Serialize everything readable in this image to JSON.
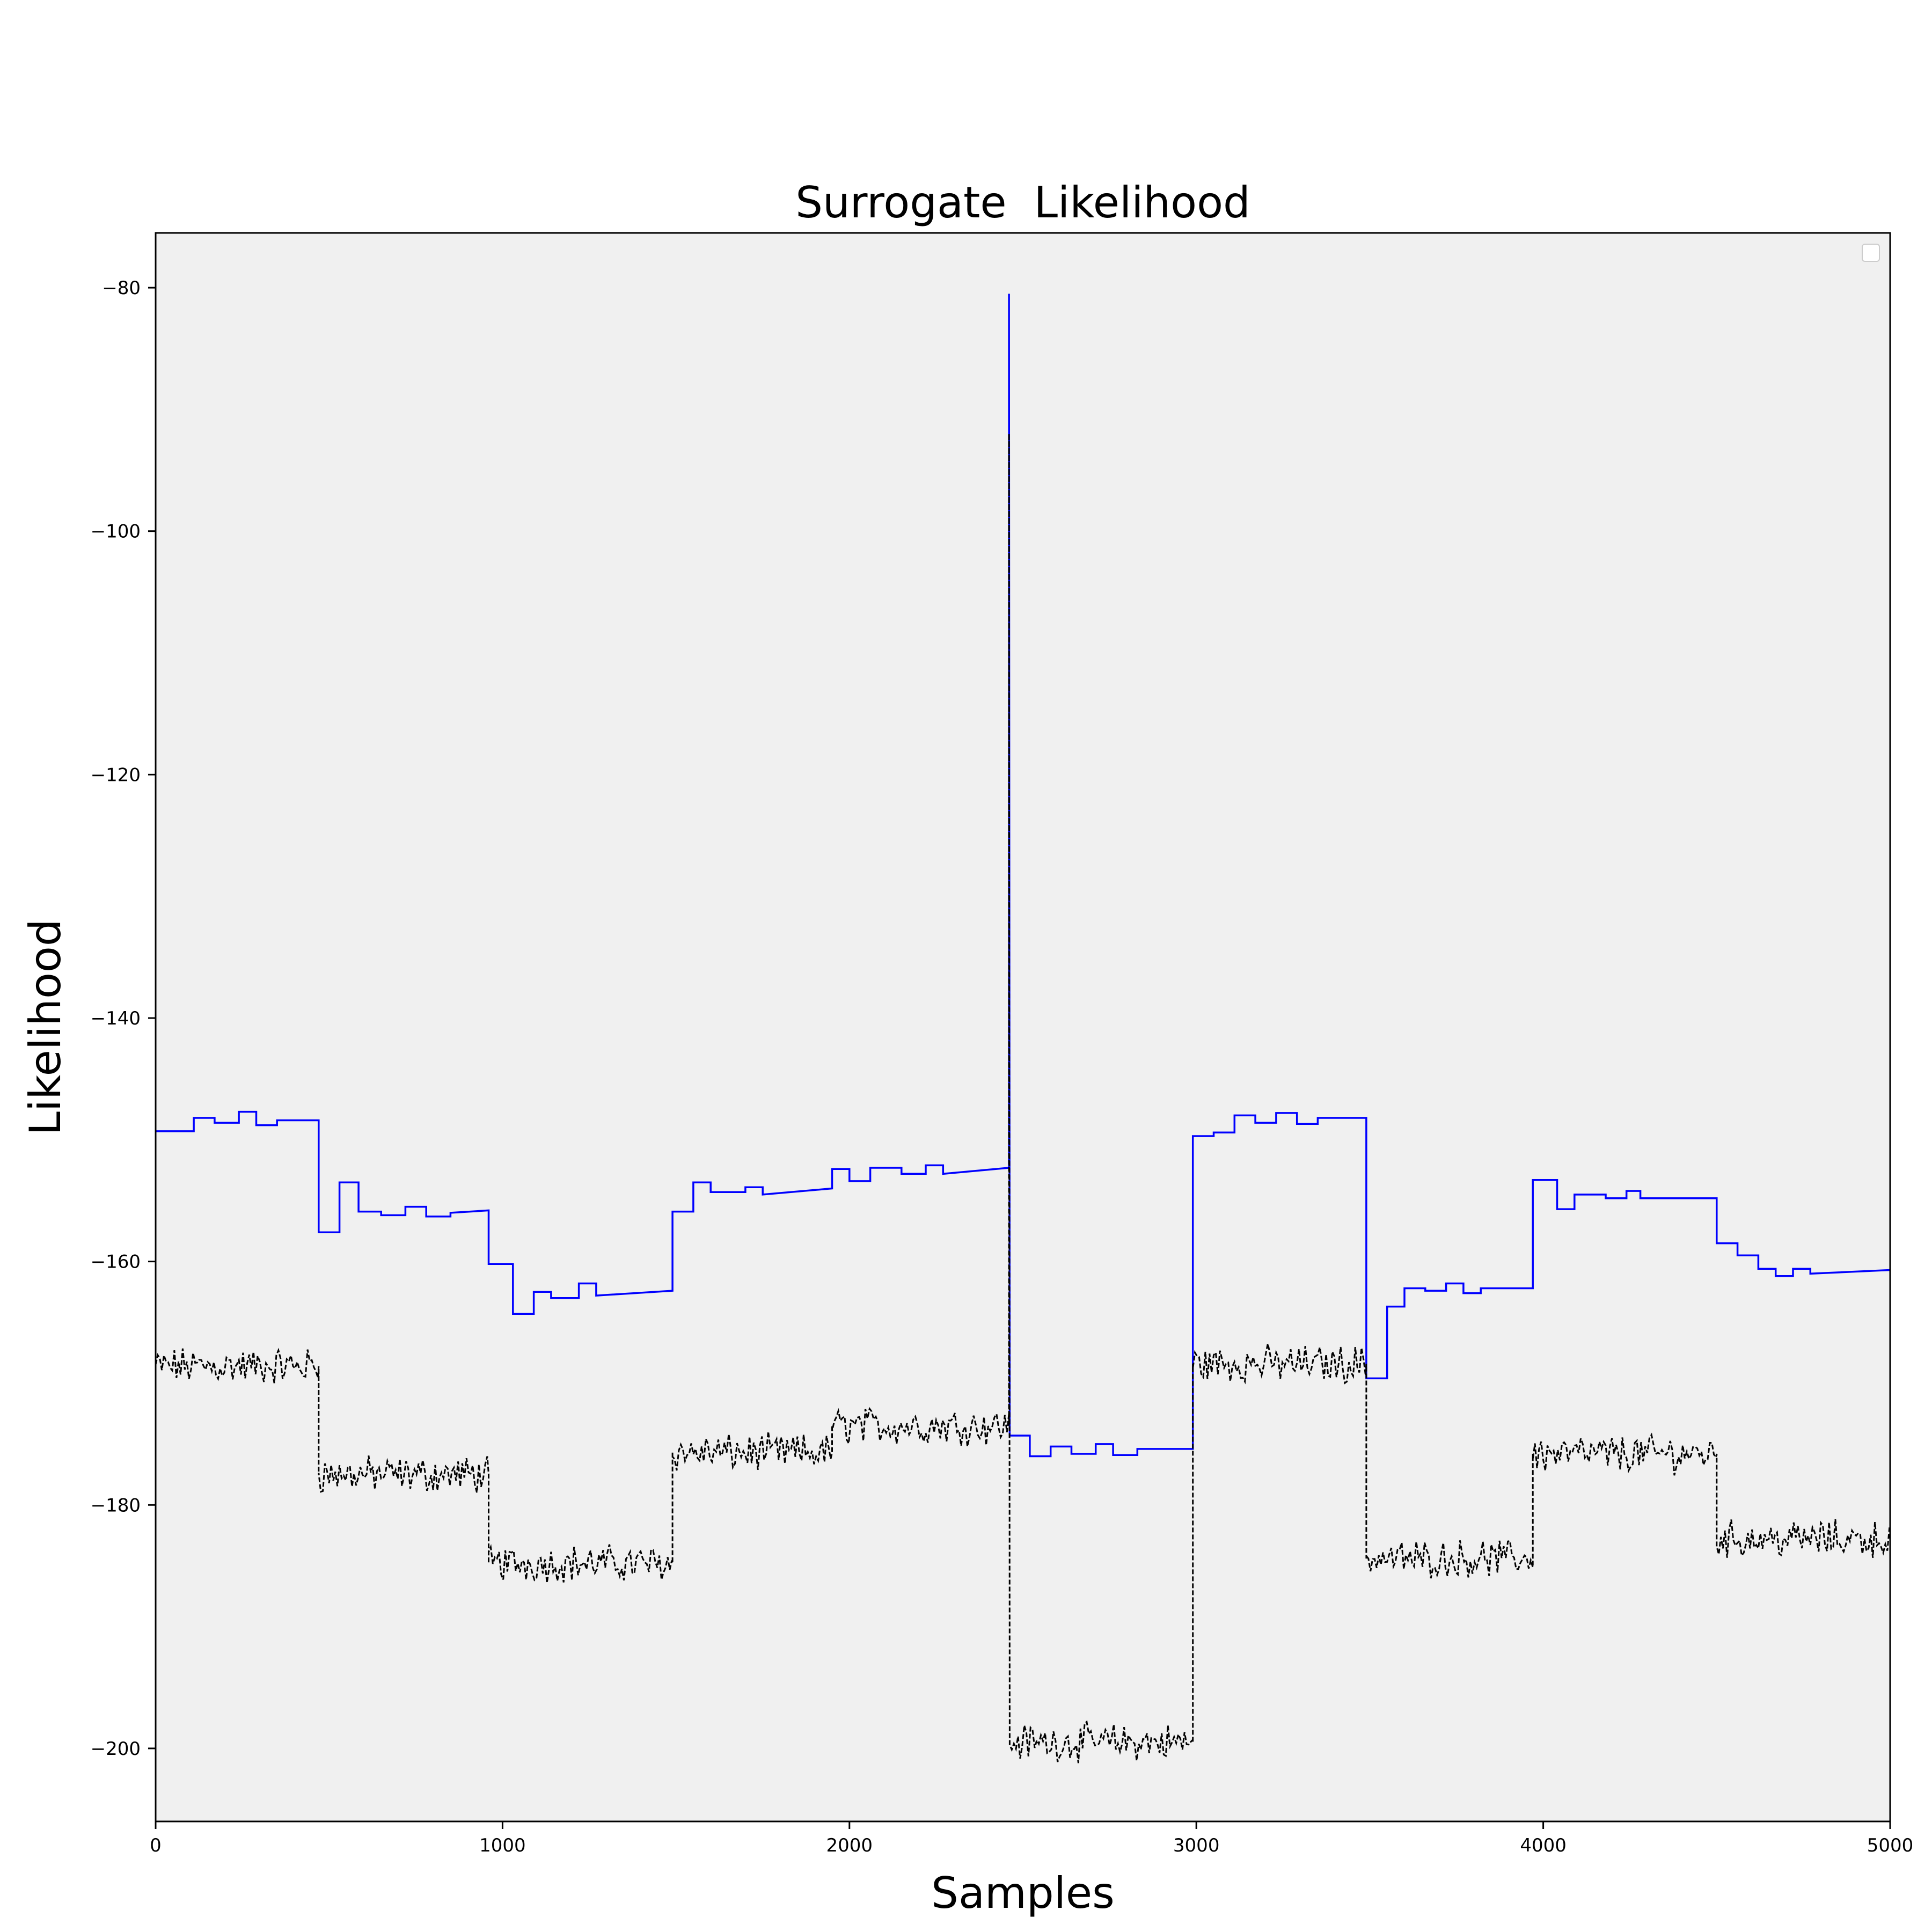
{
  "chart_data": {
    "type": "line",
    "title": "Surrogate  Likelihood",
    "xlabel": "Samples",
    "ylabel": "Likelihood",
    "xlim": [
      0,
      5000
    ],
    "ylim": [
      -206,
      -75.5
    ],
    "x_ticks": [
      "0",
      "1000",
      "2000",
      "3000",
      "4000",
      "5000"
    ],
    "x_tick_values": [
      0,
      1000,
      2000,
      3000,
      4000,
      5000
    ],
    "y_ticks": [
      "−80",
      "−100",
      "−120",
      "−140",
      "−160",
      "−180",
      "−200"
    ],
    "y_tick_values": [
      -80,
      -100,
      -120,
      -140,
      -160,
      -180,
      -200
    ],
    "legend": {
      "placement": "top-right",
      "entries": []
    },
    "grid": false,
    "plot_background": "#f0f0f0",
    "series": [
      {
        "color": "#0000ff",
        "style": "solid",
        "points": [
          [
            0,
            -149.3
          ],
          [
            110,
            -149.3
          ],
          [
            110,
            -148.2
          ],
          [
            170,
            -148.2
          ],
          [
            170,
            -148.6
          ],
          [
            240,
            -148.6
          ],
          [
            240,
            -147.7
          ],
          [
            290,
            -147.7
          ],
          [
            290,
            -148.8
          ],
          [
            350,
            -148.8
          ],
          [
            350,
            -148.4
          ],
          [
            470,
            -148.4
          ],
          [
            470,
            -157.6
          ],
          [
            530,
            -157.6
          ],
          [
            530,
            -153.5
          ],
          [
            585,
            -153.5
          ],
          [
            585,
            -155.9
          ],
          [
            650,
            -155.9
          ],
          [
            650,
            -156.2
          ],
          [
            720,
            -156.2
          ],
          [
            720,
            -155.5
          ],
          [
            780,
            -155.5
          ],
          [
            780,
            -156.3
          ],
          [
            850,
            -156.3
          ],
          [
            850,
            -156
          ],
          [
            960,
            -155.8
          ],
          [
            960,
            -160.2
          ],
          [
            1030,
            -160.2
          ],
          [
            1030,
            -164.3
          ],
          [
            1090,
            -164.3
          ],
          [
            1090,
            -162.5
          ],
          [
            1140,
            -162.5
          ],
          [
            1140,
            -163
          ],
          [
            1220,
            -163
          ],
          [
            1220,
            -161.8
          ],
          [
            1270,
            -161.8
          ],
          [
            1270,
            -162.8
          ],
          [
            1490,
            -162.4
          ],
          [
            1490,
            -155.9
          ],
          [
            1550,
            -155.9
          ],
          [
            1550,
            -153.5
          ],
          [
            1600,
            -153.5
          ],
          [
            1600,
            -154.3
          ],
          [
            1700,
            -154.3
          ],
          [
            1700,
            -153.9
          ],
          [
            1750,
            -153.9
          ],
          [
            1750,
            -154.5
          ],
          [
            1950,
            -154
          ],
          [
            1950,
            -152.4
          ],
          [
            2000,
            -152.4
          ],
          [
            2000,
            -153.4
          ],
          [
            2060,
            -153.4
          ],
          [
            2060,
            -152.3
          ],
          [
            2150,
            -152.3
          ],
          [
            2150,
            -152.8
          ],
          [
            2220,
            -152.8
          ],
          [
            2220,
            -152.1
          ],
          [
            2270,
            -152.1
          ],
          [
            2270,
            -152.8
          ],
          [
            2460,
            -152.3
          ],
          [
            2460,
            -80.5
          ],
          [
            2462,
            -174.3
          ],
          [
            2520,
            -174.3
          ],
          [
            2520,
            -176
          ],
          [
            2580,
            -176
          ],
          [
            2580,
            -175.2
          ],
          [
            2640,
            -175.2
          ],
          [
            2640,
            -175.8
          ],
          [
            2710,
            -175.8
          ],
          [
            2710,
            -175
          ],
          [
            2760,
            -175
          ],
          [
            2760,
            -175.9
          ],
          [
            2830,
            -175.9
          ],
          [
            2830,
            -175.4
          ],
          [
            2990,
            -175.4
          ],
          [
            2990,
            -149.7
          ],
          [
            3050,
            -149.7
          ],
          [
            3050,
            -149.4
          ],
          [
            3110,
            -149.4
          ],
          [
            3110,
            -148
          ],
          [
            3170,
            -148
          ],
          [
            3170,
            -148.6
          ],
          [
            3230,
            -148.6
          ],
          [
            3230,
            -147.8
          ],
          [
            3290,
            -147.8
          ],
          [
            3290,
            -148.7
          ],
          [
            3350,
            -148.7
          ],
          [
            3350,
            -148.2
          ],
          [
            3490,
            -148.2
          ],
          [
            3490,
            -169.6
          ],
          [
            3550,
            -169.6
          ],
          [
            3550,
            -163.7
          ],
          [
            3600,
            -163.7
          ],
          [
            3600,
            -162.2
          ],
          [
            3660,
            -162.2
          ],
          [
            3660,
            -162.4
          ],
          [
            3720,
            -162.4
          ],
          [
            3720,
            -161.8
          ],
          [
            3770,
            -161.8
          ],
          [
            3770,
            -162.6
          ],
          [
            3820,
            -162.6
          ],
          [
            3820,
            -162.2
          ],
          [
            3970,
            -162.2
          ],
          [
            3970,
            -153.3
          ],
          [
            4040,
            -153.3
          ],
          [
            4040,
            -155.7
          ],
          [
            4090,
            -155.7
          ],
          [
            4090,
            -154.5
          ],
          [
            4180,
            -154.5
          ],
          [
            4180,
            -154.8
          ],
          [
            4240,
            -154.8
          ],
          [
            4240,
            -154.2
          ],
          [
            4280,
            -154.2
          ],
          [
            4280,
            -154.8
          ],
          [
            4500,
            -154.8
          ],
          [
            4500,
            -158.5
          ],
          [
            4560,
            -158.5
          ],
          [
            4560,
            -159.5
          ],
          [
            4620,
            -159.5
          ],
          [
            4620,
            -160.6
          ],
          [
            4670,
            -160.6
          ],
          [
            4670,
            -161.2
          ],
          [
            4720,
            -161.2
          ],
          [
            4720,
            -160.6
          ],
          [
            4770,
            -160.6
          ],
          [
            4770,
            -161
          ],
          [
            5000,
            -160.7
          ]
        ]
      },
      {
        "color": "#000000",
        "style": "dashed",
        "points": [
          [
            0,
            -168.6
          ],
          [
            470,
            -168.6
          ],
          [
            470,
            -177.5
          ],
          [
            960,
            -177.5
          ],
          [
            960,
            -184.8
          ],
          [
            1490,
            -184.8
          ],
          [
            1490,
            -175.7
          ],
          [
            1950,
            -175.7
          ],
          [
            1950,
            -173.5
          ],
          [
            2460,
            -173.5
          ],
          [
            2460,
            -92
          ],
          [
            2462,
            -199.5
          ],
          [
            2990,
            -199.5
          ],
          [
            2990,
            -168.4
          ],
          [
            3490,
            -168.4
          ],
          [
            3490,
            -184.4
          ],
          [
            3970,
            -184.4
          ],
          [
            3970,
            -175.8
          ],
          [
            4500,
            -175.8
          ],
          [
            4500,
            -182.8
          ],
          [
            5000,
            -182.8
          ]
        ]
      }
    ]
  }
}
